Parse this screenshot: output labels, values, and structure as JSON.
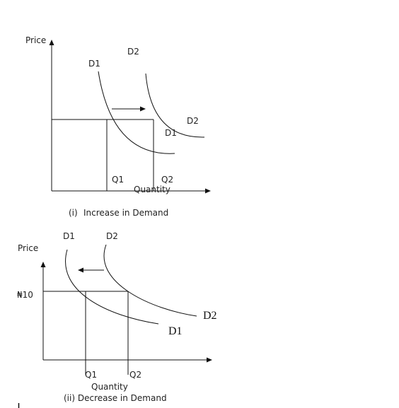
{
  "diagram1": {
    "y_axis_label": "Price",
    "x_axis_label": "Quantity",
    "curve_d1_top": "D1",
    "curve_d1_bottom": "D1",
    "curve_d2_top": "D2",
    "curve_d2_right": "D2",
    "q1": "Q1",
    "q2": "Q2",
    "caption_number": "(i)",
    "caption_text": "Increase in Demand"
  },
  "diagram2": {
    "y_axis_label": "Price",
    "price_tick": "₦10",
    "curve_d1_top": "D1",
    "curve_d2_top": "D2",
    "curve_d2_end": "D2",
    "curve_d1_end": "D1",
    "q1": "Q1",
    "q2": "Q2",
    "x_axis_label": "Quantity",
    "caption": "(ii) Decrease in Demand"
  }
}
